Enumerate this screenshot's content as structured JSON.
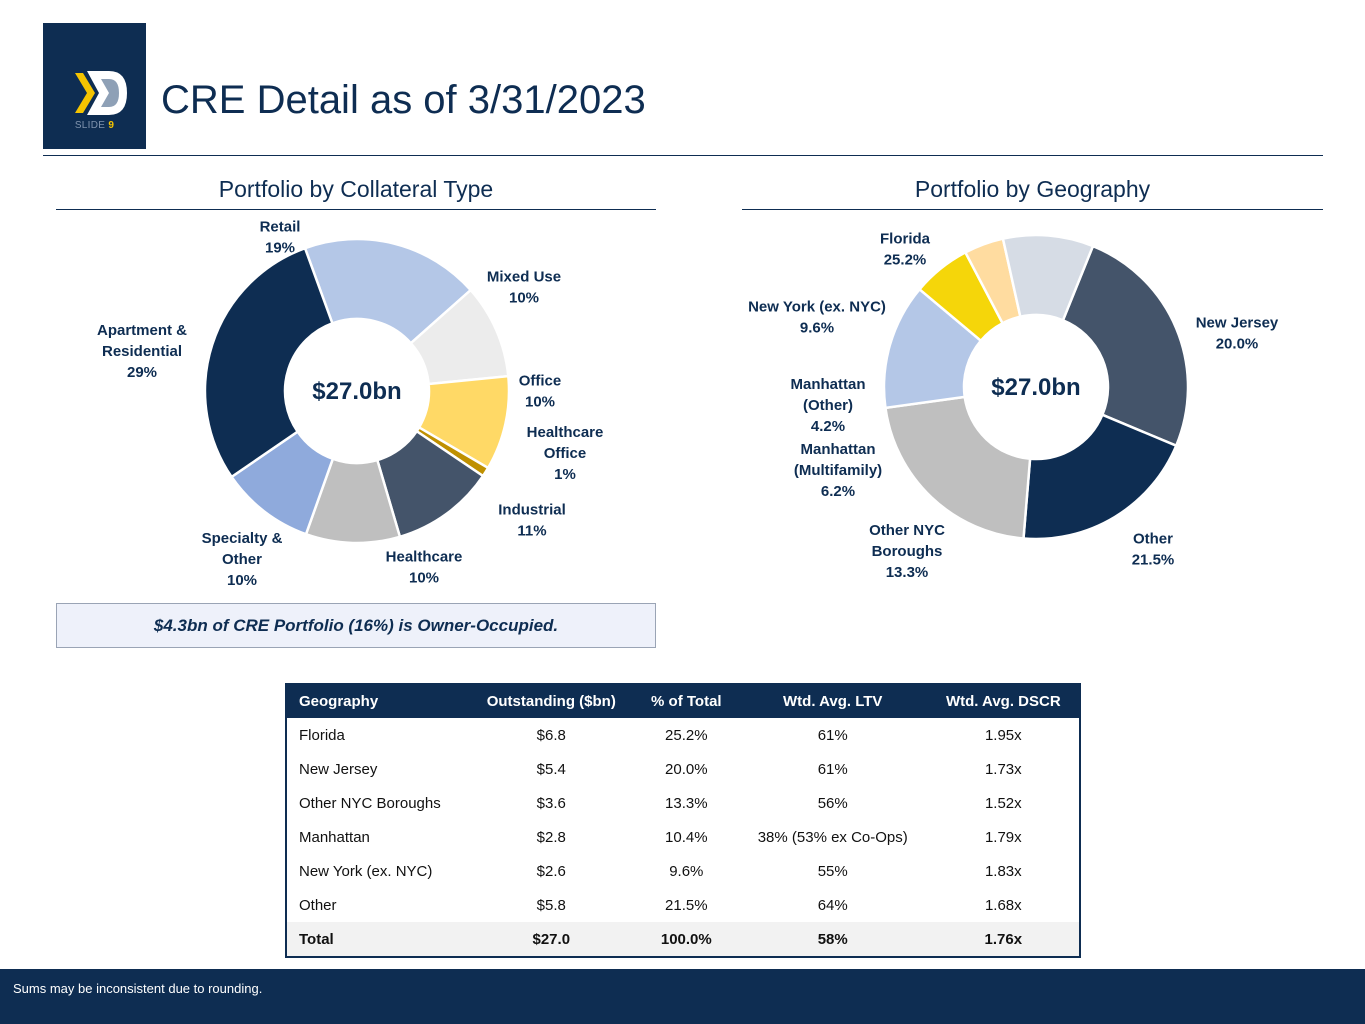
{
  "header": {
    "slide_prefix": "SLIDE",
    "slide_number": "9",
    "title": "CRE Detail as of 3/31/2023"
  },
  "colors": {
    "navy": "#0e2d52",
    "accent_yellow": "#f5c400"
  },
  "sections": {
    "collateral_title": "Portfolio by Collateral Type",
    "geography_title": "Portfolio by Geography"
  },
  "chart_data": [
    {
      "type": "pie",
      "title": "Portfolio by Collateral Type",
      "center_label": "$27.0bn",
      "slices": [
        {
          "label": "Retail",
          "value": 19,
          "display": "19%",
          "color": "#b4c7e7"
        },
        {
          "label": "Mixed Use",
          "value": 10,
          "display": "10%",
          "color": "#ececec"
        },
        {
          "label": "Office",
          "value": 10,
          "display": "10%",
          "color": "#ffd966"
        },
        {
          "label": "Healthcare Office",
          "value": 1,
          "display": "1%",
          "color": "#bf9000"
        },
        {
          "label": "Industrial",
          "value": 11,
          "display": "11%",
          "color": "#44546a"
        },
        {
          "label": "Healthcare",
          "value": 10,
          "display": "10%",
          "color": "#bfbfbf"
        },
        {
          "label": "Specialty & Other",
          "value": 10,
          "display": "10%",
          "color": "#8faadc"
        },
        {
          "label": "Apartment & Residential",
          "value": 29,
          "display": "29%",
          "color": "#0e2d52"
        }
      ]
    },
    {
      "type": "pie",
      "title": "Portfolio by Geography",
      "center_label": "$27.0bn",
      "slices": [
        {
          "label": "Florida",
          "value": 25.2,
          "display": "25.2%",
          "color": "#44546a"
        },
        {
          "label": "New Jersey",
          "value": 20.0,
          "display": "20.0%",
          "color": "#0e2d52"
        },
        {
          "label": "Other",
          "value": 21.5,
          "display": "21.5%",
          "color": "#bfbfbf"
        },
        {
          "label": "Other NYC Boroughs",
          "value": 13.3,
          "display": "13.3%",
          "color": "#b4c7e7"
        },
        {
          "label": "Manhattan (Multifamily)",
          "value": 6.2,
          "display": "6.2%",
          "color": "#f5d60a"
        },
        {
          "label": "Manhattan (Other)",
          "value": 4.2,
          "display": "4.2%",
          "color": "#ffdca0"
        },
        {
          "label": "New York (ex. NYC)",
          "value": 9.6,
          "display": "9.6%",
          "color": "#d6dce5"
        }
      ]
    }
  ],
  "note": "$4.3bn of CRE Portfolio (16%) is Owner-Occupied.",
  "table": {
    "headers": [
      "Geography",
      "Outstanding ($bn)",
      "% of Total",
      "Wtd. Avg. LTV",
      "Wtd. Avg. DSCR"
    ],
    "rows": [
      [
        "Florida",
        "$6.8",
        "25.2%",
        "61%",
        "1.95x"
      ],
      [
        "New Jersey",
        "$5.4",
        "20.0%",
        "61%",
        "1.73x"
      ],
      [
        "Other NYC Boroughs",
        "$3.6",
        "13.3%",
        "56%",
        "1.52x"
      ],
      [
        "Manhattan",
        "$2.8",
        "10.4%",
        "38% (53% ex Co-Ops)",
        "1.79x"
      ],
      [
        "New York (ex. NYC)",
        "$2.6",
        "9.6%",
        "55%",
        "1.83x"
      ],
      [
        "Other",
        "$5.8",
        "21.5%",
        "64%",
        "1.68x"
      ]
    ],
    "total": [
      "Total",
      "$27.0",
      "100.0%",
      "58%",
      "1.76x"
    ]
  },
  "footer": {
    "text": "Sums may be inconsistent due to rounding."
  }
}
